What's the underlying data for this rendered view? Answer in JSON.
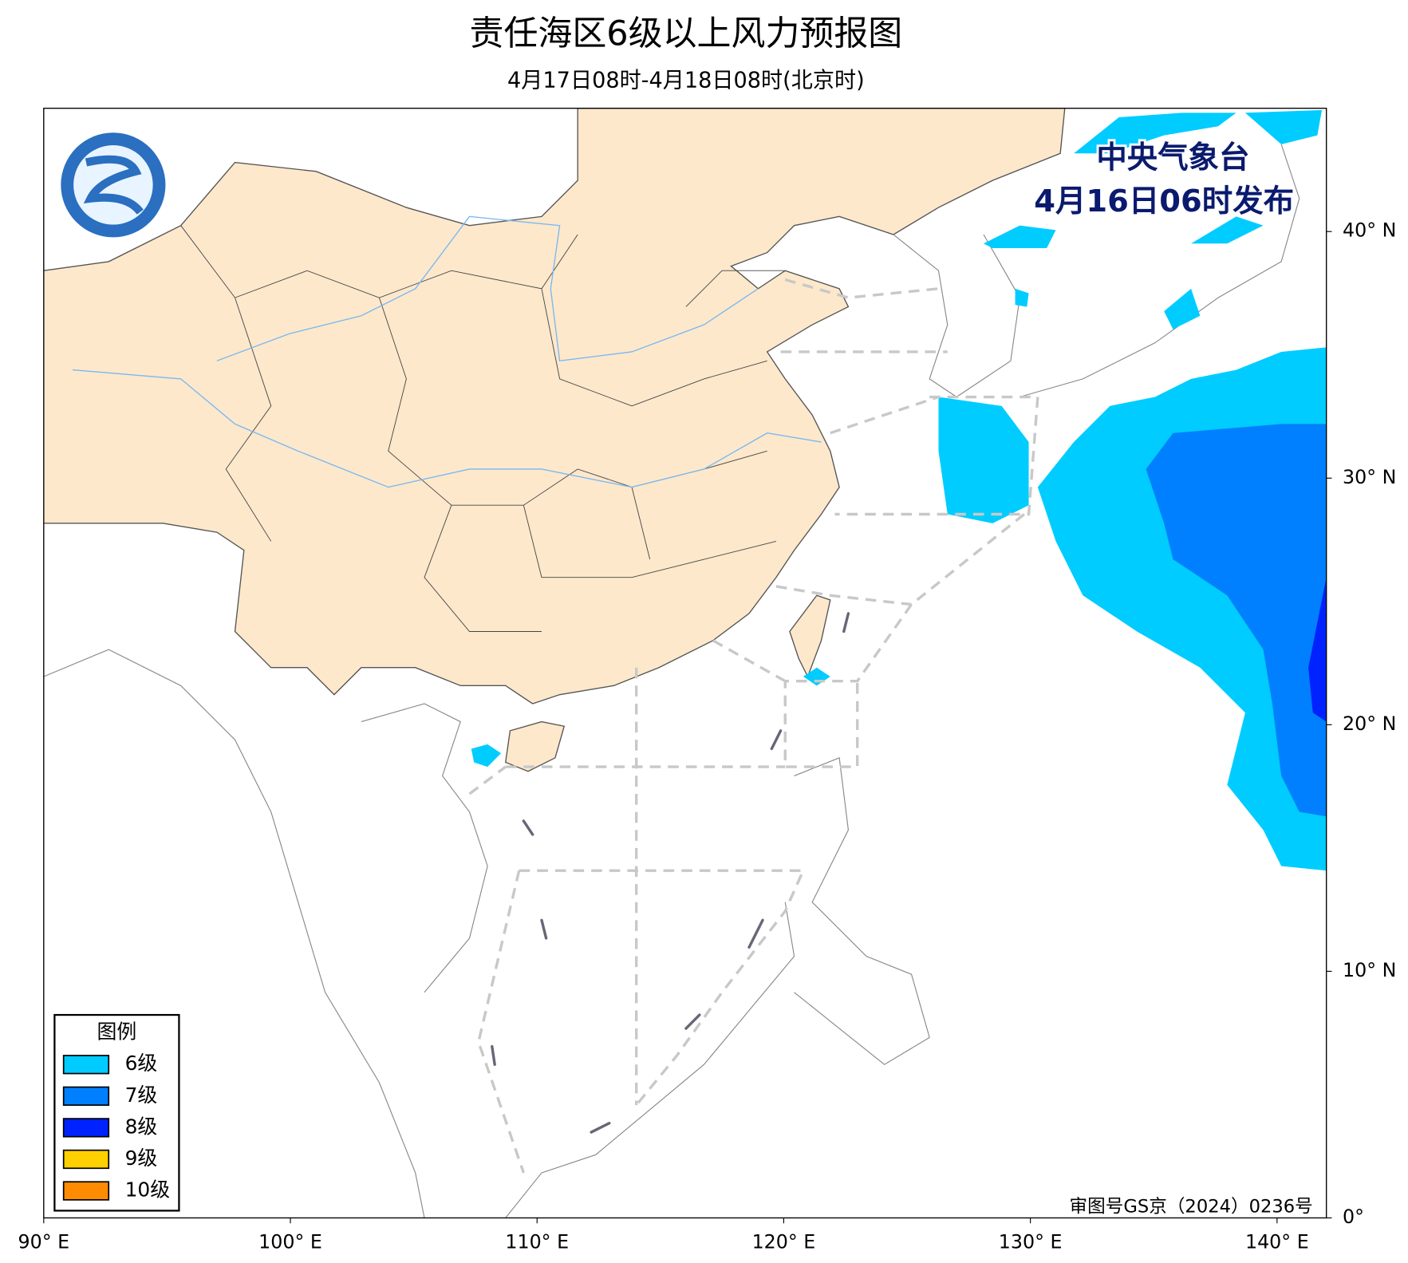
{
  "header": {
    "title": "责任海区6级以上风力预报图",
    "subtitle": "4月17日08时-4月18日08时(北京时)"
  },
  "issuer": {
    "name": "中央气象台",
    "time": "4月16日06时发布"
  },
  "legend": {
    "title": "图例",
    "items": [
      {
        "label": "6级",
        "color": "#00ccff"
      },
      {
        "label": "7级",
        "color": "#0080ff"
      },
      {
        "label": "8级",
        "color": "#0022ff"
      },
      {
        "label": "9级",
        "color": "#ffd000"
      },
      {
        "label": "10级",
        "color": "#ff8c00"
      }
    ]
  },
  "map": {
    "xlim": [
      90,
      142
    ],
    "ylim": [
      0,
      45
    ],
    "xticks": [
      {
        "value": 90,
        "label": "90° E"
      },
      {
        "value": 100,
        "label": "100° E"
      },
      {
        "value": 110,
        "label": "110° E"
      },
      {
        "value": 120,
        "label": "120° E"
      },
      {
        "value": 130,
        "label": "130° E"
      },
      {
        "value": 140,
        "label": "140° E"
      }
    ],
    "yticks": [
      {
        "value": 0,
        "label": "0°"
      },
      {
        "value": 10,
        "label": "10° N"
      },
      {
        "value": 20,
        "label": "20° N"
      },
      {
        "value": 30,
        "label": "30° N"
      },
      {
        "value": 40,
        "label": "40° N"
      }
    ]
  },
  "note": "审图号GS京（2024）0236号"
}
